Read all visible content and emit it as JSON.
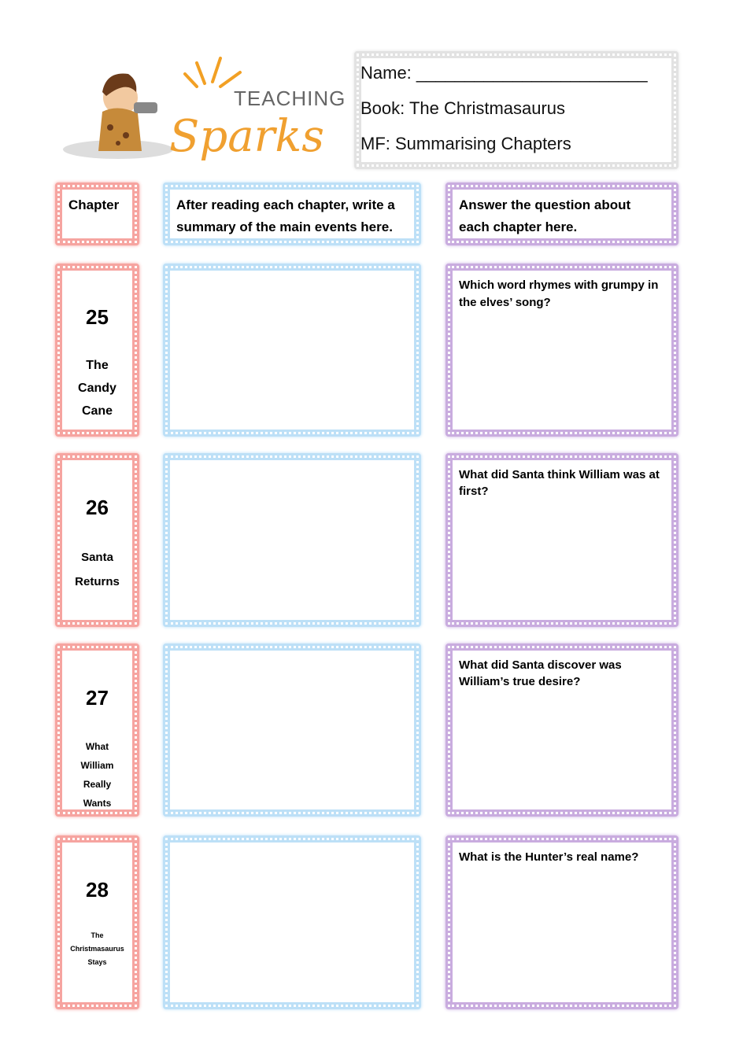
{
  "logo": {
    "text_top": "TEACHING",
    "text_main": "Sparks"
  },
  "header": {
    "name_label": "Name: ________________________",
    "book_label": "Book: The Christmasaurus",
    "mf_label": "MF: Summarising Chapters"
  },
  "columns": {
    "chapter": "Chapter",
    "summary": "After reading each chapter, write a summary of the main events here.",
    "question": "Answer the question about each chapter here."
  },
  "rows": [
    {
      "number": "25",
      "title": "The Candy Cane",
      "question": "Which word rhymes with grumpy in the elves’ song?"
    },
    {
      "number": "26",
      "title": "Santa Returns",
      "question": "What did Santa think William was at first?"
    },
    {
      "number": "27",
      "title": "What William Really Wants",
      "question": "What did Santa discover was William’s true desire?"
    },
    {
      "number": "28",
      "title": "The Christmasaurus Stays",
      "question": "What is the Hunter’s real name?"
    }
  ],
  "colors": {
    "chapter": "#f6a4a0",
    "summary": "#bde0f7",
    "question": "#c9acdf"
  }
}
